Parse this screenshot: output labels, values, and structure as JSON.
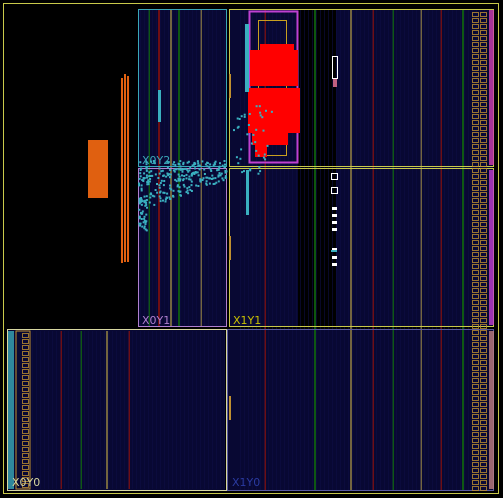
{
  "app": "FPGA device floorplan",
  "regions": [
    {
      "id": "X0Y2",
      "label": "X0Y2",
      "color": "#3aa7b8"
    },
    {
      "id": "X0Y1",
      "label": "X0Y1",
      "color": "#b07fd0"
    },
    {
      "id": "X1Y1",
      "label": "X1Y1",
      "color": "#c8c000"
    },
    {
      "id": "X0Y0",
      "label": "X0Y0",
      "color": "#d6d6a0"
    },
    {
      "id": "X1Y0",
      "label": "X1Y0",
      "color": "#2a3aa0"
    }
  ],
  "colors": {
    "background": "#000000",
    "fabric": "#080833",
    "clock_region_border": "#c9c94a",
    "pblock_border": "#c040d0",
    "utilized_cells": "#ff0000",
    "io_bank": "#c09030",
    "hard_block": "#e06010",
    "placed_cells": "#3ab0c0",
    "column_red": "#7a1010",
    "column_green": "#106010",
    "column_tan": "#807040"
  }
}
